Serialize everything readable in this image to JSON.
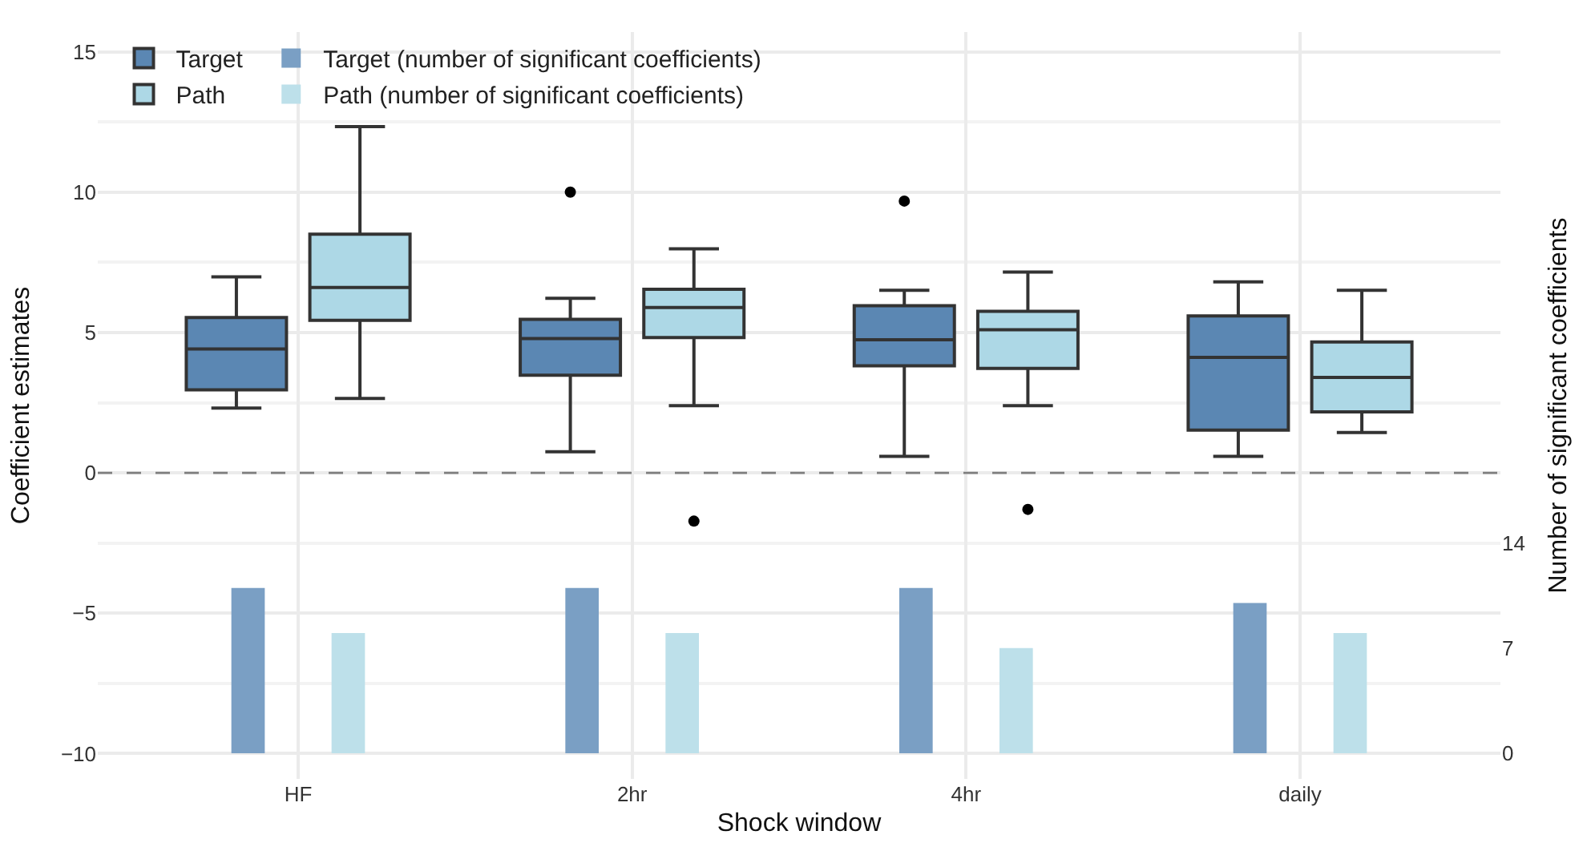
{
  "chart_data": {
    "type": "box",
    "xlabel": "Shock window",
    "ylabel": "Coefficient estimates",
    "y2label": "Number of significant coefficients",
    "categories": [
      "HF",
      "2hr",
      "4hr",
      "daily"
    ],
    "series": [
      {
        "name": "Target",
        "color": "#5b87b3",
        "boxes": [
          {
            "low": 2.31,
            "q1": 2.96,
            "median": 4.41,
            "q3": 5.53,
            "high": 6.98
          },
          {
            "low": 0.75,
            "q1": 3.48,
            "median": 4.78,
            "q3": 5.47,
            "high": 6.22,
            "outliers": [
              10.0
            ]
          },
          {
            "low": 0.59,
            "q1": 3.81,
            "median": 4.74,
            "q3": 5.95,
            "high": 6.5,
            "outliers": [
              9.68
            ]
          },
          {
            "low": 0.59,
            "q1": 1.52,
            "median": 4.11,
            "q3": 5.59,
            "high": 6.8
          }
        ]
      },
      {
        "name": "Path",
        "color": "#add8e6",
        "boxes": [
          {
            "low": 2.65,
            "q1": 5.43,
            "median": 6.6,
            "q3": 8.5,
            "high": 12.33
          },
          {
            "low": 2.39,
            "q1": 4.82,
            "median": 5.89,
            "q3": 6.54,
            "high": 7.98,
            "outliers": [
              -1.72
            ]
          },
          {
            "low": 2.39,
            "q1": 3.72,
            "median": 5.1,
            "q3": 5.75,
            "high": 7.15,
            "outliers": [
              -1.3
            ]
          },
          {
            "low": 1.44,
            "q1": 2.17,
            "median": 3.4,
            "q3": 4.66,
            "high": 6.5
          }
        ]
      },
      {
        "name": "Target (number of significant coefficients)",
        "type": "bar",
        "axis": "y2",
        "color": "#7a9fc4",
        "values": [
          11,
          11,
          11,
          10
        ]
      },
      {
        "name": "Path (number of significant coefficients)",
        "type": "bar",
        "axis": "y2",
        "color": "#bde0ea",
        "values": [
          8,
          8,
          7,
          8
        ]
      }
    ],
    "ylim": [
      -10.9,
      15.7
    ],
    "yticks": [
      -10,
      -5,
      0,
      5,
      10,
      15
    ],
    "y2lim": [
      -1.7,
      48
    ],
    "y2ticks": [
      0,
      7,
      14
    ],
    "ref_lines": [
      {
        "axis": "y",
        "value": 0,
        "color": "#7f7f7f",
        "line_style": "dashed"
      }
    ],
    "grid": true,
    "legend": "top left"
  }
}
